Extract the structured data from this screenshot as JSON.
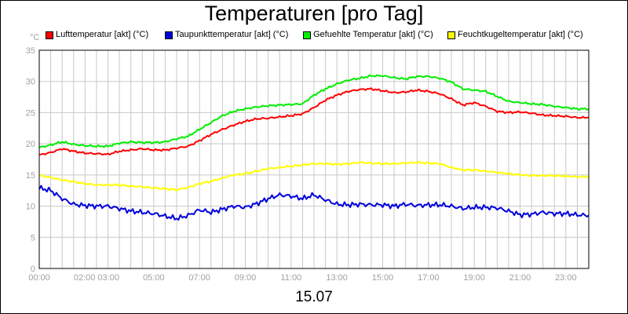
{
  "chart_data": {
    "type": "line",
    "title": "Temperaturen [pro Tag]",
    "date_label": "15.07",
    "ylabel": "°C",
    "ylim": [
      0,
      35
    ],
    "y_ticks": [
      "0",
      "5",
      "10",
      "15",
      "20",
      "25",
      "30",
      "35"
    ],
    "xlim": [
      0,
      24
    ],
    "x_tick_labels": [
      "00:00",
      "02:00 03:00",
      "05:00",
      "07:00",
      "09:00",
      "11:00",
      "13:00",
      "15:00",
      "17:00",
      "19:00",
      "21:00",
      "23:00"
    ],
    "grid": true,
    "legend_position": "top",
    "x": [
      0,
      0.5,
      1,
      1.5,
      2,
      2.5,
      3,
      3.5,
      4,
      4.5,
      5,
      5.5,
      6,
      6.5,
      7,
      7.5,
      8,
      8.5,
      9,
      9.5,
      10,
      10.5,
      11,
      11.5,
      12,
      12.5,
      13,
      13.5,
      14,
      14.5,
      15,
      15.5,
      16,
      16.5,
      17,
      17.5,
      18,
      18.5,
      19,
      19.5,
      20,
      20.5,
      21,
      21.5,
      22,
      22.5,
      23,
      23.5,
      24
    ],
    "series": [
      {
        "name": "Lufttemperatur [akt] (°C)",
        "color": "#ff0000",
        "values": [
          18.2,
          18.6,
          19.2,
          18.8,
          18.5,
          18.4,
          18.3,
          18.8,
          19.0,
          19.2,
          19.0,
          19.0,
          19.3,
          19.6,
          20.5,
          21.5,
          22.3,
          23.0,
          23.6,
          24.0,
          24.1,
          24.3,
          24.5,
          24.8,
          25.8,
          27.0,
          27.8,
          28.4,
          28.7,
          28.8,
          28.5,
          28.2,
          28.3,
          28.6,
          28.4,
          28.0,
          27.2,
          26.2,
          26.6,
          26.0,
          25.2,
          25.0,
          25.1,
          24.9,
          24.6,
          24.5,
          24.4,
          24.2,
          24.2
        ]
      },
      {
        "name": "Taupunkttemperatur [akt] (°C)",
        "color": "#0000dd",
        "values": [
          12.9,
          12.5,
          11.2,
          10.3,
          10.1,
          10.0,
          10.0,
          9.6,
          9.2,
          9.0,
          8.8,
          8.4,
          8.0,
          8.5,
          9.4,
          9.0,
          9.5,
          10.0,
          9.8,
          10.4,
          11.2,
          11.8,
          11.6,
          11.2,
          11.8,
          11.0,
          10.3,
          10.2,
          10.3,
          10.2,
          10.2,
          10.0,
          10.3,
          10.1,
          10.2,
          10.2,
          10.0,
          9.6,
          9.8,
          9.8,
          9.7,
          9.2,
          8.6,
          8.7,
          9.0,
          8.8,
          8.8,
          8.6,
          8.5
        ]
      },
      {
        "name": "Gefuehlte Temperatur [akt] (°C)",
        "color": "#00ee00",
        "values": [
          19.4,
          19.8,
          20.3,
          19.9,
          19.7,
          19.6,
          19.6,
          20.1,
          20.3,
          20.2,
          20.2,
          20.3,
          20.8,
          21.2,
          22.3,
          23.4,
          24.5,
          25.2,
          25.6,
          25.9,
          26.1,
          26.2,
          26.3,
          26.4,
          27.8,
          28.8,
          29.6,
          30.2,
          30.5,
          30.9,
          30.9,
          30.6,
          30.4,
          30.8,
          30.8,
          30.5,
          29.9,
          28.8,
          28.6,
          28.4,
          27.6,
          26.8,
          26.6,
          26.4,
          26.3,
          26.0,
          25.8,
          25.6,
          25.6
        ]
      },
      {
        "name": "Feuchtkugeltemperatur [akt] (°C)",
        "color": "#ffff00",
        "values": [
          14.9,
          14.6,
          14.2,
          13.9,
          13.6,
          13.4,
          13.4,
          13.4,
          13.2,
          13.1,
          12.9,
          12.8,
          12.6,
          13.0,
          13.6,
          14.0,
          14.5,
          15.0,
          15.2,
          15.6,
          16.0,
          16.2,
          16.4,
          16.6,
          16.8,
          16.8,
          16.7,
          16.8,
          17.0,
          16.9,
          16.8,
          16.8,
          16.9,
          17.0,
          16.9,
          16.8,
          16.2,
          15.8,
          15.8,
          15.6,
          15.4,
          15.2,
          15.0,
          14.9,
          14.9,
          14.9,
          14.8,
          14.7,
          14.7
        ]
      }
    ]
  }
}
